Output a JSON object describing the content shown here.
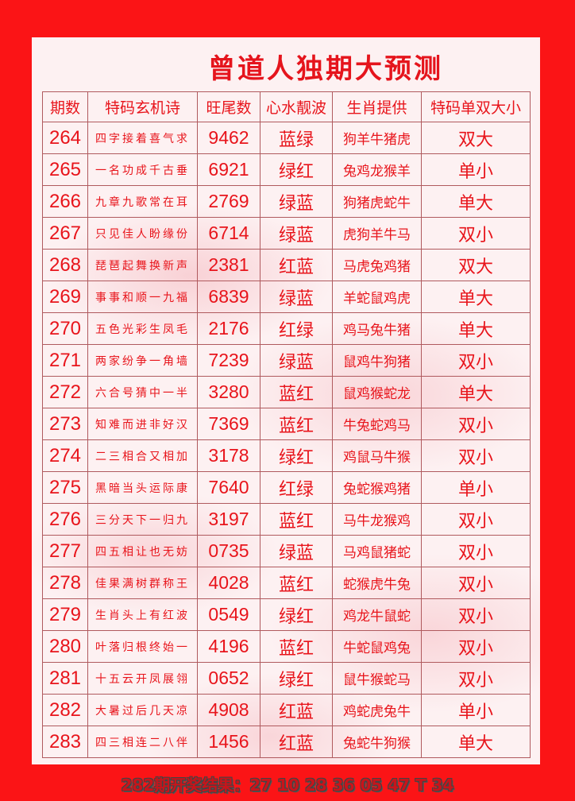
{
  "title": "曾道人独期大预测",
  "headers": [
    "期数",
    "特码玄机诗",
    "旺尾数",
    "心水靓波",
    "生肖提供",
    "特码单双大小"
  ],
  "rows": [
    [
      "264",
      "四字接着喜气求",
      "9462",
      "蓝绿",
      "狗羊牛猪虎",
      "双大"
    ],
    [
      "265",
      "一名功成千古垂",
      "6921",
      "绿红",
      "兔鸡龙猴羊",
      "单小"
    ],
    [
      "266",
      "九章九歌常在耳",
      "2769",
      "绿蓝",
      "狗猪虎蛇牛",
      "单大"
    ],
    [
      "267",
      "只见佳人盼缘份",
      "6714",
      "绿蓝",
      "虎狗羊牛马",
      "双小"
    ],
    [
      "268",
      "琵琶起舞换新声",
      "2381",
      "红蓝",
      "马虎兔鸡猪",
      "双大"
    ],
    [
      "269",
      "事事和顺一九福",
      "6839",
      "绿蓝",
      "羊蛇鼠鸡虎",
      "单大"
    ],
    [
      "270",
      "五色光彩生凤毛",
      "2176",
      "红绿",
      "鸡马兔牛猪",
      "单大"
    ],
    [
      "271",
      "两家纷争一角墙",
      "7239",
      "绿蓝",
      "鼠鸡牛狗猪",
      "双小"
    ],
    [
      "272",
      "六合号猜中一半",
      "3280",
      "蓝红",
      "鼠鸡猴蛇龙",
      "单大"
    ],
    [
      "273",
      "知难而进非好汉",
      "7369",
      "蓝红",
      "牛兔蛇鸡马",
      "双小"
    ],
    [
      "274",
      "二三相合又相加",
      "3178",
      "绿红",
      "鸡鼠马牛猴",
      "双小"
    ],
    [
      "275",
      "黑暗当头运际康",
      "7640",
      "红绿",
      "兔蛇猴鸡猪",
      "单小"
    ],
    [
      "276",
      "三分天下一归九",
      "3197",
      "蓝红",
      "马牛龙猴鸡",
      "双小"
    ],
    [
      "277",
      "四五相让也无妨",
      "0735",
      "绿蓝",
      "马鸡鼠猪蛇",
      "双小"
    ],
    [
      "278",
      "佳果满树群称王",
      "4028",
      "蓝红",
      "蛇猴虎牛兔",
      "双小"
    ],
    [
      "279",
      "生肖头上有红波",
      "0549",
      "绿红",
      "鸡龙牛鼠蛇",
      "双小"
    ],
    [
      "280",
      "叶落归根终始一",
      "4196",
      "蓝红",
      "牛蛇鼠鸡兔",
      "双小"
    ],
    [
      "281",
      "十五云开凤展翎",
      "0652",
      "绿红",
      "鼠牛猴蛇马",
      "双小"
    ],
    [
      "282",
      "大暑过后几天凉",
      "4908",
      "红蓝",
      "鸡蛇虎兔牛",
      "单小"
    ],
    [
      "283",
      "四三相连二八伴",
      "1456",
      "红蓝",
      "兔蛇牛狗猴",
      "单大"
    ]
  ],
  "footer": "282期开奖结果：27 10 28 36 05 47 T 34",
  "colors": {
    "background": "#fb1416",
    "text": "#e8141b",
    "panel": "#fdf1f2"
  }
}
